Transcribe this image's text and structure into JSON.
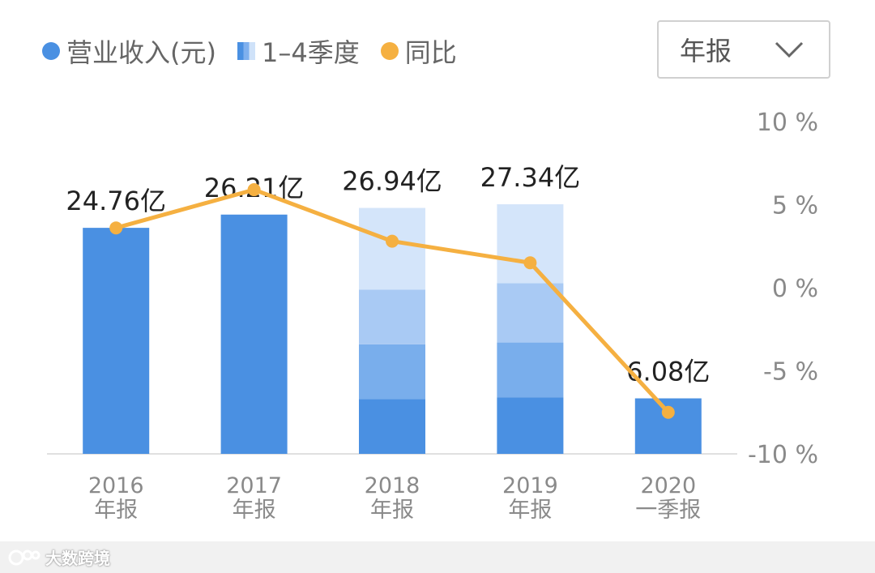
{
  "legend": [
    {
      "label": "营业收入(元)",
      "icon": "dot",
      "color": "#4a90e2"
    },
    {
      "label": "1–4季度",
      "icon": "gradient-square",
      "color": "#7fb0ee"
    },
    {
      "label": "同比",
      "icon": "dot",
      "color": "#f5b041"
    }
  ],
  "dropdown": {
    "value": "年报",
    "icon": "chevron-down-icon"
  },
  "watermark": {
    "text": "大数跨境"
  },
  "chart_data": {
    "type": "bar",
    "categories": [
      [
        "2016",
        "年报"
      ],
      [
        "2017",
        "年报"
      ],
      [
        "2018",
        "年报"
      ],
      [
        "2019",
        "年报"
      ],
      [
        "2020",
        "一季报"
      ]
    ],
    "series": [
      {
        "name": "营业收入(元)",
        "values": [
          24.76,
          26.21,
          26.94,
          27.34,
          6.08
        ]
      },
      {
        "name": "同比",
        "type": "line",
        "axis": "right",
        "values": [
          3.6,
          5.9,
          2.8,
          1.5,
          -7.5
        ]
      }
    ],
    "quarters": [
      null,
      null,
      [
        6.0,
        6.0,
        6.0,
        8.94
      ],
      [
        6.2,
        6.0,
        6.5,
        8.64
      ],
      null
    ],
    "value_labels": [
      "24.76亿",
      "26.21亿",
      "26.94亿",
      "27.34亿",
      "6.08亿"
    ],
    "y_right": {
      "ticks": [
        "10 %",
        "5 %",
        "0 %",
        "-5 %",
        "-10 %"
      ],
      "tick_values": [
        10,
        5,
        0,
        -5,
        -10
      ],
      "range": [
        -10,
        10
      ]
    },
    "y_left_range": [
      0,
      36.4
    ],
    "colors": {
      "revenue": "#4a90e2",
      "q1": "#4a90e2",
      "q2": "#79aeec",
      "q3": "#a9caf4",
      "q4": "#d4e5fa",
      "line": "#f5b041",
      "axis": "#e0e0e0",
      "tick_text": "#8a8a8a",
      "label_text": "#222222"
    },
    "grid": false,
    "legend_position": "top-left"
  }
}
